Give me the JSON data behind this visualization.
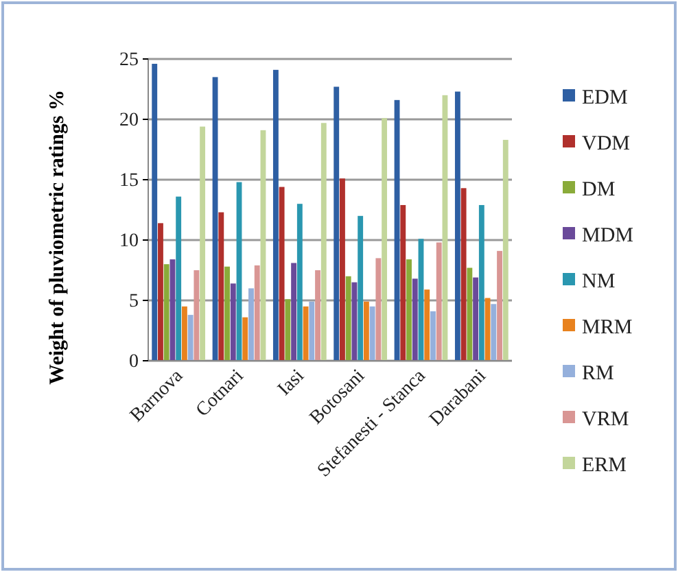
{
  "chart_data": {
    "type": "bar",
    "ylabel": "Weight of pluviometric ratings %",
    "categories": [
      "Barnova",
      "Cotnari",
      "Iasi",
      "Botosani",
      "Stefanesti - Stanca",
      "Darabani"
    ],
    "series": [
      {
        "name": "EDM",
        "color": "#2e5fa3",
        "values": [
          24.6,
          23.5,
          24.1,
          22.7,
          21.6,
          22.3
        ]
      },
      {
        "name": "VDM",
        "color": "#b0302c",
        "values": [
          11.4,
          12.3,
          14.4,
          15.1,
          12.9,
          14.3
        ]
      },
      {
        "name": "DM",
        "color": "#8aab3a",
        "values": [
          8.0,
          7.8,
          5.1,
          7.0,
          8.4,
          7.7
        ]
      },
      {
        "name": "MDM",
        "color": "#6a4a9a",
        "values": [
          8.4,
          6.4,
          8.1,
          6.5,
          6.8,
          6.9
        ]
      },
      {
        "name": "NM",
        "color": "#2a97b0",
        "values": [
          13.6,
          14.8,
          13.0,
          12.0,
          10.1,
          12.9
        ]
      },
      {
        "name": "MRM",
        "color": "#e8821e",
        "values": [
          4.5,
          3.6,
          4.5,
          4.9,
          5.9,
          5.2
        ]
      },
      {
        "name": "RM",
        "color": "#95b0dc",
        "values": [
          3.8,
          6.0,
          4.9,
          4.5,
          4.1,
          4.7
        ]
      },
      {
        "name": "VRM",
        "color": "#d99694",
        "values": [
          7.5,
          7.9,
          7.5,
          8.5,
          9.8,
          9.1
        ]
      },
      {
        "name": "ERM",
        "color": "#c3d69b",
        "values": [
          19.4,
          19.1,
          19.7,
          20.1,
          22.0,
          18.3
        ]
      }
    ],
    "ylim": [
      0,
      25
    ],
    "yticks": [
      0,
      5,
      10,
      15,
      20,
      25
    ],
    "grid": "y",
    "legend": "right"
  }
}
